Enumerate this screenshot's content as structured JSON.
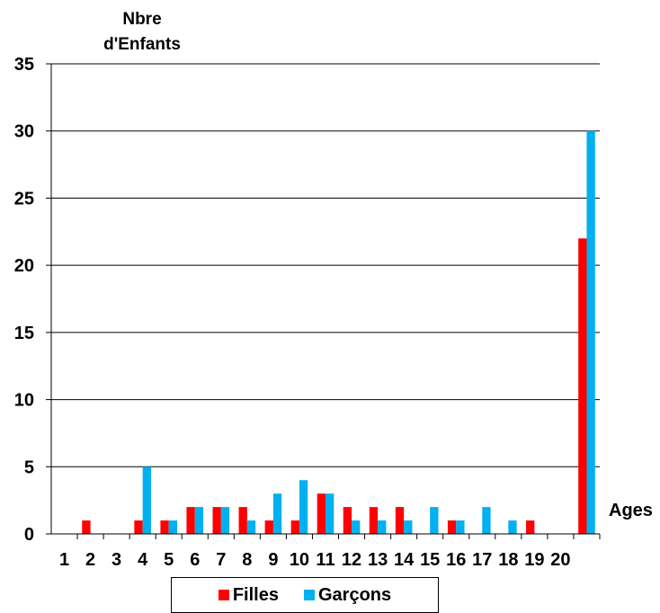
{
  "chart_data": {
    "type": "bar",
    "title": "",
    "ylabel_lines": [
      "Nbre",
      "d'Enfants"
    ],
    "xlabel": "Ages",
    "ylim": [
      0,
      35
    ],
    "yticks": [
      0,
      5,
      10,
      15,
      20,
      25,
      30,
      35
    ],
    "grid": true,
    "legend_position": "bottom",
    "categories": [
      "1",
      "2",
      "3",
      "4",
      "5",
      "6",
      "7",
      "8",
      "9",
      "10",
      "11",
      "12",
      "13",
      "14",
      "15",
      "16",
      "17",
      "18",
      "19",
      "20",
      ""
    ],
    "series": [
      {
        "name": "Filles",
        "color": "#ff0000",
        "values": [
          0,
          1,
          0,
          1,
          1,
          2,
          2,
          2,
          1,
          1,
          3,
          2,
          2,
          2,
          0,
          1,
          0,
          0,
          1,
          0,
          22
        ]
      },
      {
        "name": "Garçons",
        "color": "#00b0f0",
        "values": [
          0,
          0,
          0,
          5,
          1,
          2,
          2,
          1,
          3,
          4,
          3,
          1,
          1,
          1,
          2,
          1,
          2,
          1,
          0,
          0,
          30
        ]
      }
    ]
  }
}
